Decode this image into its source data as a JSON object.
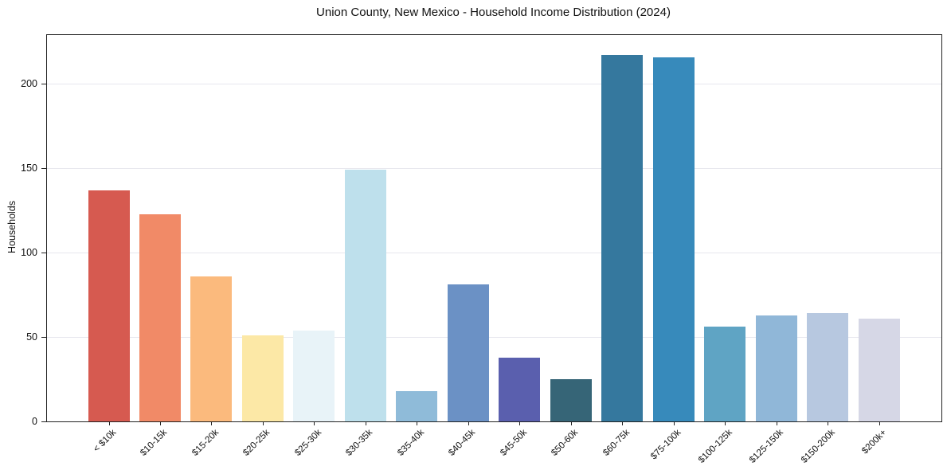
{
  "chart_data": {
    "type": "bar",
    "title": "Union County, New Mexico - Household Income Distribution (2024)",
    "xlabel": "",
    "ylabel": "Households",
    "categories": [
      "< $10k",
      "$10-15k",
      "$15-20k",
      "$20-25k",
      "$25-30k",
      "$30-35k",
      "$35-40k",
      "$40-45k",
      "$45-50k",
      "$50-60k",
      "$60-75k",
      "$75-100k",
      "$100-125k",
      "$125-150k",
      "$150-200k",
      "$200k+"
    ],
    "values": [
      137,
      123,
      86,
      51,
      54,
      149,
      18,
      81,
      38,
      25,
      217,
      216,
      56,
      63,
      64,
      61
    ],
    "bar_colors": [
      "#d65a50",
      "#f18a67",
      "#fbba7d",
      "#fce8a6",
      "#e8f3f8",
      "#bee0ec",
      "#8fbbd9",
      "#6b91c5",
      "#5a5fae",
      "#366577",
      "#35789e",
      "#378abb",
      "#5fa4c4",
      "#90b7d8",
      "#b7c8e0",
      "#d6d7e6"
    ],
    "yticks": [
      0,
      50,
      100,
      150,
      200
    ],
    "ylim": [
      0,
      229
    ],
    "grid": "horizontal",
    "legend": null,
    "background": "#ffffff",
    "axis_color": "#222222",
    "grid_color": "#e7e7ee"
  }
}
